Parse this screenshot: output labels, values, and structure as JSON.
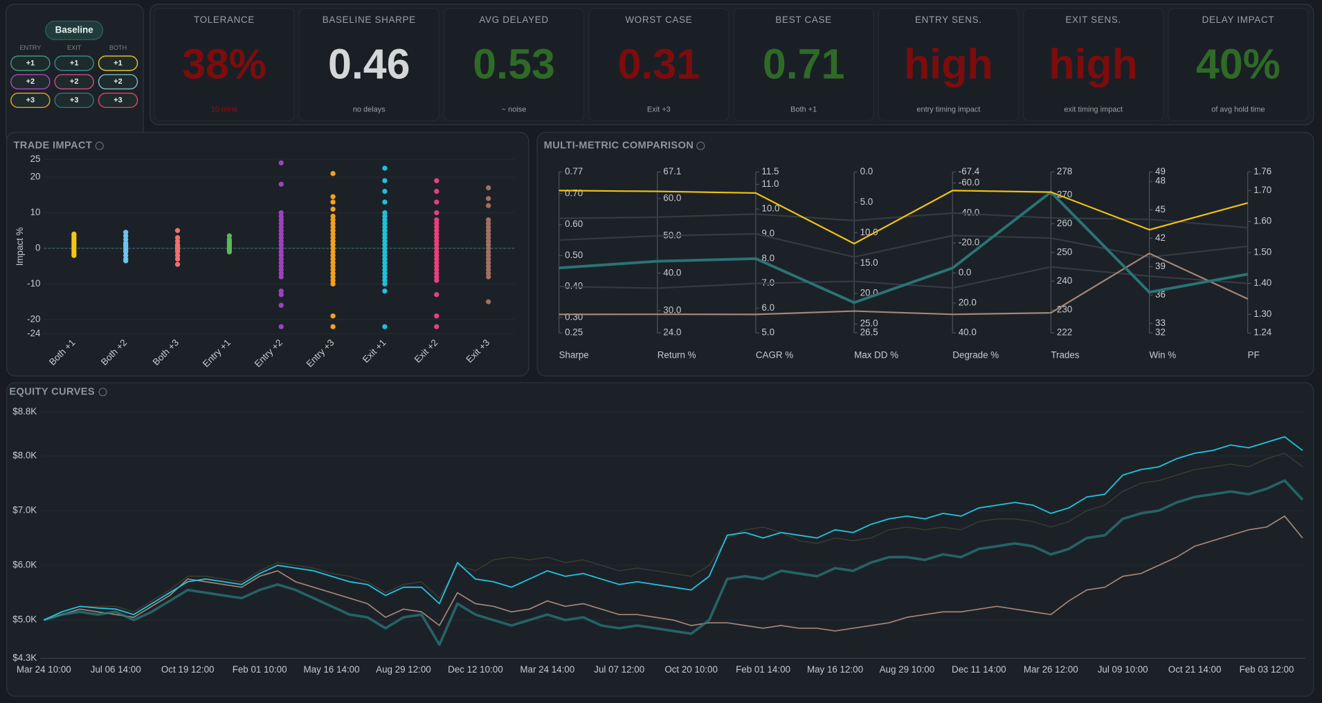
{
  "selector": {
    "title": "Baseline",
    "columns": [
      "ENTRY",
      "EXIT",
      "BOTH"
    ],
    "buttons": [
      [
        "+1",
        "+1",
        "+1"
      ],
      [
        "+2",
        "+2",
        "+2"
      ],
      [
        "+3",
        "+3",
        "+3"
      ]
    ]
  },
  "metrics": [
    {
      "label": "TOLERANCE",
      "value": "38%",
      "note": "10 mins",
      "color": "#7d0c0c",
      "note_color": "#8a1010"
    },
    {
      "label": "BASELINE SHARPE",
      "value": "0.46",
      "note": "no delays",
      "color": "#d4d6d8"
    },
    {
      "label": "AVG DELAYED",
      "value": "0.53",
      "note": "~ noise",
      "color": "#2f6a27"
    },
    {
      "label": "WORST CASE",
      "value": "0.31",
      "note": "Exit +3",
      "color": "#7d0c0c"
    },
    {
      "label": "BEST CASE",
      "value": "0.71",
      "note": "Both +1",
      "color": "#2f6a27"
    },
    {
      "label": "ENTRY SENS.",
      "value": "high",
      "note": "entry timing impact",
      "color": "#7d0c0c"
    },
    {
      "label": "EXIT SENS.",
      "value": "high",
      "note": "exit timing impact",
      "color": "#7d0c0c"
    },
    {
      "label": "DELAY IMPACT",
      "value": "40%",
      "note": "of avg hold time",
      "color": "#2f6a27"
    }
  ],
  "chart_data": [
    {
      "type": "strip",
      "title": "TRADE IMPACT",
      "ylabel": "Impact %",
      "categories": [
        "Both +1",
        "Both +2",
        "Both +3",
        "Entry +1",
        "Entry +2",
        "Entry +3",
        "Exit +1",
        "Exit +2",
        "Exit +3"
      ],
      "colors": [
        "#f5c518",
        "#6fc3f0",
        "#f07070",
        "#5cb85c",
        "#a040c0",
        "#f5a020",
        "#20c0d8",
        "#e8407a",
        "#a07060"
      ],
      "values": [
        [
          4,
          3.5,
          3,
          2.5,
          2,
          1.5,
          1,
          0.5,
          0,
          -0.5,
          -1,
          -1.5,
          -2
        ],
        [
          4.5,
          3.5,
          2.5,
          1.5,
          1,
          0.5,
          0,
          -0.5,
          -1,
          -2,
          -3,
          -3.5
        ],
        [
          5,
          3,
          2,
          1,
          0.5,
          0,
          -0.5,
          -1,
          -2,
          -3,
          -4.5
        ],
        [
          3.5,
          2.5,
          2,
          1.5,
          1,
          0.5,
          0,
          -0.5,
          -1
        ],
        [
          24,
          18,
          10,
          9,
          8,
          7,
          6,
          5,
          4,
          3,
          2,
          1,
          0,
          -1,
          -2,
          -3,
          -4,
          -5,
          -6,
          -7,
          -8,
          -12,
          -13,
          -16,
          -22
        ],
        [
          21,
          14.5,
          13,
          11,
          9,
          8,
          7,
          6,
          5,
          4,
          3,
          2,
          1,
          0,
          -1,
          -2,
          -3,
          -4,
          -5,
          -6,
          -7,
          -8,
          -9,
          -10,
          -19,
          -22
        ],
        [
          22.5,
          19,
          16,
          13,
          10,
          9,
          8,
          7,
          6,
          5,
          4,
          3,
          2,
          1,
          0,
          -1,
          -2,
          -3,
          -4,
          -5,
          -6,
          -7,
          -8,
          -9,
          -10,
          -12,
          -22
        ],
        [
          19,
          16,
          13,
          10,
          8,
          7,
          6,
          5,
          4,
          3,
          2,
          1,
          0,
          -1,
          -2,
          -3,
          -4,
          -5,
          -6,
          -7,
          -8,
          -9,
          -13,
          -19,
          -22
        ],
        [
          17,
          14,
          12,
          8,
          7,
          6,
          5,
          4,
          3,
          2,
          1,
          0,
          -1,
          -2,
          -3,
          -4,
          -5,
          -6,
          -7,
          -8,
          -15
        ]
      ],
      "ylim": [
        -24,
        25
      ],
      "yticks": [
        25,
        20,
        10,
        0,
        -10,
        -20,
        -24
      ],
      "grid": true
    },
    {
      "type": "parallel",
      "title": "MULTI-METRIC COMPARISON",
      "axes": [
        {
          "label": "Sharpe",
          "lim": [
            0.25,
            0.77
          ],
          "ticks": [
            0.25,
            {
              "value": 0.3,
              "label": "0.30"
            },
            {
              "value": 0.4,
              "label": "0.40"
            },
            {
              "value": 0.5,
              "label": "0.50"
            },
            {
              "value": 0.6,
              "label": "0.60"
            },
            {
              "value": 0.7,
              "label": "0.70"
            },
            0.77
          ]
        },
        {
          "label": "Return %",
          "lim": [
            24,
            67.1
          ],
          "ticks": [
            {
              "value": 24,
              "label": "24.0"
            },
            {
              "value": 30,
              "label": "30.0"
            },
            {
              "value": 40,
              "label": "40.0"
            },
            {
              "value": 50,
              "label": "50.0"
            },
            {
              "value": 60,
              "label": "60.0"
            },
            67.1
          ]
        },
        {
          "label": "CAGR %",
          "lim": [
            5,
            11.5
          ],
          "ticks": [
            {
              "value": 5,
              "label": "5.0"
            },
            {
              "value": 6,
              "label": "6.0"
            },
            {
              "value": 7,
              "label": "7.0"
            },
            {
              "value": 8,
              "label": "8.0"
            },
            {
              "value": 9,
              "label": "9.0"
            },
            {
              "value": 10,
              "label": "10.0"
            },
            {
              "value": 11,
              "label": "11.0"
            },
            11.5
          ]
        },
        {
          "label": "Max DD %",
          "lim": [
            26.5,
            0
          ],
          "ticks": [
            {
              "value": 0,
              "label": "0.0"
            },
            {
              "value": 5,
              "label": "5.0"
            },
            {
              "value": 10,
              "label": "10.0"
            },
            {
              "value": 15,
              "label": "15.0"
            },
            {
              "value": 20,
              "label": "20.0"
            },
            {
              "value": 25,
              "label": "25.0"
            },
            26.5
          ]
        },
        {
          "label": "Degrade %",
          "lim": [
            40,
            -67.4
          ],
          "ticks": [
            -67.4,
            {
              "value": -60,
              "label": "-60.0"
            },
            {
              "value": -40,
              "label": "-40.0"
            },
            {
              "value": -20,
              "label": "-20.0"
            },
            {
              "value": 0,
              "label": "0.0"
            },
            {
              "value": 20,
              "label": "20.0"
            },
            {
              "value": 40,
              "label": "40.0"
            }
          ]
        },
        {
          "label": "Trades",
          "lim": [
            222,
            278
          ],
          "ticks": [
            222,
            230,
            240,
            250,
            260,
            270,
            278
          ]
        },
        {
          "label": "Win %",
          "lim": [
            32,
            49
          ],
          "ticks": [
            32,
            33,
            36,
            39,
            42,
            45,
            48,
            49
          ]
        },
        {
          "label": "PF",
          "lim": [
            1.24,
            1.76
          ],
          "ticks": [
            1.24,
            {
              "value": 1.3,
              "label": "1.30"
            },
            {
              "value": 1.4,
              "label": "1.40"
            },
            {
              "value": 1.5,
              "label": "1.50"
            },
            {
              "value": 1.6,
              "label": "1.60"
            },
            {
              "value": 1.7,
              "label": "1.70"
            },
            1.76
          ]
        }
      ],
      "series": [
        {
          "color": "#353b44",
          "values": [
            0.62,
            55,
            9.8,
            8,
            -40,
            262,
            44,
            1.58
          ]
        },
        {
          "color": "#353b44",
          "values": [
            0.55,
            50,
            9.0,
            14,
            -25,
            255,
            40,
            1.52
          ]
        },
        {
          "color": "#353b44",
          "values": [
            0.4,
            36,
            7.0,
            18,
            10,
            245,
            38,
            1.4
          ]
        },
        {
          "color": "#a58677",
          "values": [
            0.31,
            29,
            5.75,
            22.9,
            27.6,
            229,
            40.4,
            1.35
          ]
        },
        {
          "color": "#2a7474",
          "values": [
            0.46,
            43.2,
            8.0,
            21.5,
            -3.3,
            271,
            36.3,
            1.43
          ]
        },
        {
          "color": "#f2c40f",
          "values": [
            0.71,
            61.9,
            10.65,
            11.8,
            -55,
            271,
            42.9,
            1.66
          ]
        }
      ]
    },
    {
      "type": "line",
      "title": "EQUITY CURVES",
      "x": [
        "Mar 24 10:00",
        null,
        null,
        null,
        "Jul 06 14:00",
        null,
        null,
        null,
        "Oct 19 12:00",
        null,
        null,
        null,
        "Feb 01 10:00",
        null,
        null,
        null,
        "May 16 14:00",
        null,
        null,
        null,
        "Aug 29 12:00",
        null,
        null,
        null,
        "Dec 12 10:00",
        null,
        null,
        null,
        "Mar 24 14:00",
        null,
        null,
        null,
        "Jul 07 12:00",
        null,
        null,
        null,
        "Oct 20 10:00",
        null,
        null,
        null,
        "Feb 01 14:00",
        null,
        null,
        null,
        "May 16 12:00",
        null,
        null,
        null,
        "Aug 29 10:00",
        null,
        null,
        null,
        "Dec 11 14:00",
        null,
        null,
        null,
        "Mar 26 12:00",
        null,
        null,
        null,
        "Jul 09 10:00",
        null,
        null,
        null,
        "Oct 21 14:00",
        null,
        null,
        null,
        "Feb 03 12:00",
        null,
        null
      ],
      "series": [
        {
          "color": "#3b3d2e",
          "width": 1.2,
          "values": [
            5000,
            5150,
            5250,
            5250,
            5250,
            5150,
            5350,
            5550,
            5800,
            5800,
            5750,
            5700,
            5900,
            6050,
            6000,
            5950,
            5850,
            5800,
            5700,
            5500,
            5650,
            5700,
            5400,
            6000,
            5900,
            6100,
            6150,
            6100,
            6150,
            6050,
            6100,
            6000,
            5900,
            5950,
            5900,
            5850,
            5800,
            6000,
            6500,
            6650,
            6700,
            6600,
            6450,
            6400,
            6500,
            6450,
            6500,
            6650,
            6700,
            6650,
            6700,
            6650,
            6800,
            6850,
            6850,
            6800,
            6700,
            6800,
            7000,
            7100,
            7350,
            7500,
            7550,
            7650,
            7750,
            7800,
            7850,
            7800,
            7950,
            8050,
            7800
          ]
        },
        {
          "color": "#a58677",
          "width": 1.4,
          "values": [
            5000,
            5100,
            5200,
            5150,
            5100,
            5050,
            5250,
            5450,
            5750,
            5700,
            5650,
            5600,
            5800,
            5900,
            5700,
            5600,
            5500,
            5400,
            5300,
            5050,
            5200,
            5150,
            4900,
            5500,
            5300,
            5250,
            5150,
            5200,
            5350,
            5250,
            5300,
            5200,
            5100,
            5100,
            5050,
            5000,
            4900,
            4950,
            4950,
            4900,
            4850,
            4900,
            4850,
            4850,
            4800,
            4850,
            4900,
            4950,
            5050,
            5100,
            5150,
            5150,
            5200,
            5250,
            5200,
            5150,
            5100,
            5350,
            5550,
            5600,
            5800,
            5850,
            6000,
            6150,
            6350,
            6450,
            6550,
            6650,
            6700,
            6900,
            6500
          ]
        },
        {
          "color": "#2a7a7a",
          "width": 3,
          "values": [
            5000,
            5100,
            5150,
            5100,
            5150,
            5000,
            5150,
            5350,
            5550,
            5500,
            5450,
            5400,
            5550,
            5650,
            5550,
            5400,
            5250,
            5100,
            5050,
            4850,
            5050,
            5100,
            4550,
            5300,
            5100,
            5000,
            4900,
            5000,
            5100,
            5000,
            5050,
            4900,
            4850,
            4900,
            4850,
            4800,
            4750,
            5000,
            5750,
            5800,
            5750,
            5900,
            5850,
            5800,
            5950,
            5900,
            6050,
            6150,
            6150,
            6100,
            6200,
            6150,
            6300,
            6350,
            6400,
            6350,
            6200,
            6300,
            6500,
            6550,
            6850,
            6950,
            7000,
            7150,
            7250,
            7300,
            7350,
            7300,
            7400,
            7550,
            7200
          ]
        },
        {
          "color": "#22c4dc",
          "width": 1.5,
          "values": [
            5000,
            5150,
            5250,
            5220,
            5200,
            5100,
            5300,
            5500,
            5700,
            5750,
            5700,
            5650,
            5850,
            6000,
            5950,
            5900,
            5800,
            5700,
            5650,
            5450,
            5600,
            5600,
            5300,
            6050,
            5750,
            5700,
            5600,
            5750,
            5900,
            5800,
            5850,
            5750,
            5650,
            5700,
            5650,
            5600,
            5550,
            5800,
            6550,
            6600,
            6500,
            6600,
            6550,
            6500,
            6650,
            6600,
            6750,
            6850,
            6900,
            6850,
            6950,
            6900,
            7050,
            7100,
            7150,
            7100,
            6950,
            7050,
            7250,
            7300,
            7650,
            7750,
            7800,
            7950,
            8050,
            8100,
            8200,
            8150,
            8250,
            8350,
            8100
          ]
        }
      ],
      "ylim": [
        4300,
        8800
      ],
      "yticks": [
        {
          "value": 4300,
          "label": "$4.3K"
        },
        {
          "value": 5000,
          "label": "$5.0K"
        },
        {
          "value": 6000,
          "label": "$6.0K"
        },
        {
          "value": 7000,
          "label": "$7.0K"
        },
        {
          "value": 8000,
          "label": "$8.0K"
        },
        {
          "value": 8800,
          "label": "$8.8K"
        }
      ],
      "grid": true
    }
  ]
}
